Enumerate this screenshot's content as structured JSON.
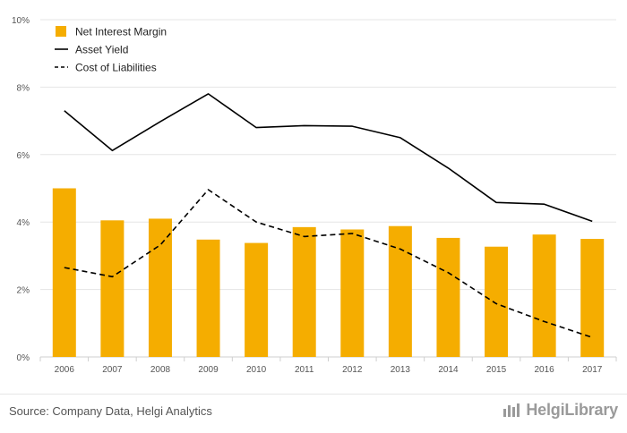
{
  "chart_data": {
    "type": "bar",
    "categories": [
      "2006",
      "2007",
      "2008",
      "2009",
      "2010",
      "2011",
      "2012",
      "2013",
      "2014",
      "2015",
      "2016",
      "2017"
    ],
    "series": [
      {
        "name": "Net Interest Margin",
        "type": "bar",
        "color": "#f5ad00",
        "values": [
          5.0,
          4.05,
          4.1,
          3.48,
          3.38,
          3.85,
          3.78,
          3.88,
          3.53,
          3.27,
          3.63,
          3.5
        ]
      },
      {
        "name": "Asset Yield",
        "type": "line",
        "style": "solid",
        "color": "#000000",
        "values": [
          7.3,
          6.12,
          6.98,
          7.8,
          6.8,
          6.86,
          6.84,
          6.5,
          5.6,
          4.58,
          4.53,
          4.02
        ]
      },
      {
        "name": "Cost of Liabilities",
        "type": "line",
        "style": "dashed",
        "color": "#000000",
        "values": [
          2.65,
          2.38,
          3.32,
          4.96,
          4.0,
          3.57,
          3.66,
          3.2,
          2.5,
          1.58,
          1.05,
          0.58
        ]
      }
    ],
    "ylim": [
      0,
      10
    ],
    "yticks": [
      "0%",
      "2%",
      "4%",
      "6%",
      "8%",
      "10%"
    ],
    "ytick_values": [
      0,
      2,
      4,
      6,
      8,
      10
    ],
    "grid": true,
    "legend_position": "top-left"
  },
  "footer": {
    "source": "Source: Company Data, Helgi Analytics",
    "brand": "HelgiLibrary"
  },
  "colors": {
    "bar": "#f5ad00",
    "line": "#000000",
    "grid": "#e5e5e5",
    "axis_text": "#555555"
  },
  "icons": {
    "brand": "helgi-logo-icon"
  }
}
